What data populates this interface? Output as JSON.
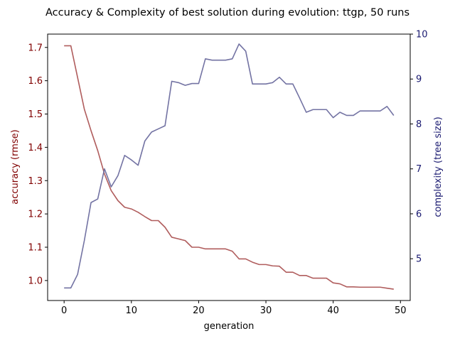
{
  "chart_data": {
    "type": "line",
    "title": "Accuracy & Complexity of best solution during evolution: ttgp, 50 runs",
    "xlabel": "generation",
    "ylabel_left": "accuracy (rmse)",
    "ylabel_right": "complexity (tree size)",
    "xlim": [
      -2.45,
      51.45
    ],
    "ylim_left": [
      0.94,
      1.74
    ],
    "ylim_right": [
      4.07,
      10.0
    ],
    "x_ticks": [
      "0",
      "10",
      "20",
      "30",
      "40",
      "50"
    ],
    "y_ticks_left": [
      "1.0",
      "1.1",
      "1.2",
      "1.3",
      "1.4",
      "1.5",
      "1.6",
      "1.7"
    ],
    "y_ticks_right": [
      "5",
      "6",
      "7",
      "8",
      "9",
      "10"
    ],
    "left_axis_color": "#800000",
    "right_axis_color": "#191970",
    "series": [
      {
        "axis": "left",
        "color": "#b05d5d",
        "x": [
          0,
          1,
          2,
          3,
          4,
          5,
          6,
          7,
          8,
          9,
          10,
          11,
          12,
          13,
          14,
          15,
          16,
          17,
          18,
          19,
          20,
          21,
          22,
          23,
          24,
          25,
          26,
          27,
          28,
          29,
          30,
          31,
          32,
          33,
          34,
          35,
          36,
          37,
          38,
          39,
          40,
          41,
          42,
          43,
          44,
          45,
          46,
          47,
          48,
          49
        ],
        "values": [
          1.705,
          1.705,
          1.61,
          1.515,
          1.45,
          1.39,
          1.32,
          1.27,
          1.24,
          1.22,
          1.215,
          1.205,
          1.192,
          1.18,
          1.18,
          1.16,
          1.13,
          1.125,
          1.12,
          1.1,
          1.1,
          1.095,
          1.095,
          1.095,
          1.095,
          1.088,
          1.065,
          1.065,
          1.055,
          1.048,
          1.048,
          1.044,
          1.043,
          1.025,
          1.025,
          1.015,
          1.015,
          1.007,
          1.007,
          1.007,
          0.993,
          0.99,
          0.981,
          0.981,
          0.98,
          0.98,
          0.98,
          0.98,
          0.977,
          0.974
        ]
      },
      {
        "axis": "right",
        "color": "#7373a3",
        "x": [
          0,
          1,
          2,
          3,
          4,
          5,
          6,
          7,
          8,
          9,
          10,
          11,
          12,
          13,
          14,
          15,
          16,
          17,
          18,
          19,
          20,
          21,
          22,
          23,
          24,
          25,
          26,
          27,
          28,
          29,
          30,
          31,
          32,
          33,
          34,
          35,
          36,
          37,
          38,
          39,
          40,
          41,
          42,
          43,
          44,
          45,
          46,
          47,
          48,
          49
        ],
        "values": [
          4.35,
          4.35,
          4.65,
          5.4,
          6.25,
          6.33,
          7,
          6.6,
          6.85,
          7.3,
          7.2,
          7.08,
          7.62,
          7.82,
          7.89,
          7.96,
          8.95,
          8.92,
          8.86,
          8.9,
          8.9,
          9.45,
          9.42,
          9.42,
          9.42,
          9.45,
          9.78,
          9.62,
          8.89,
          8.89,
          8.89,
          8.92,
          9.04,
          8.89,
          8.89,
          8.58,
          8.26,
          8.32,
          8.32,
          8.32,
          8.14,
          8.26,
          8.19,
          8.19,
          8.29,
          8.29,
          8.29,
          8.29,
          8.39,
          8.19
        ]
      }
    ],
    "grid": false,
    "legend": "none"
  }
}
